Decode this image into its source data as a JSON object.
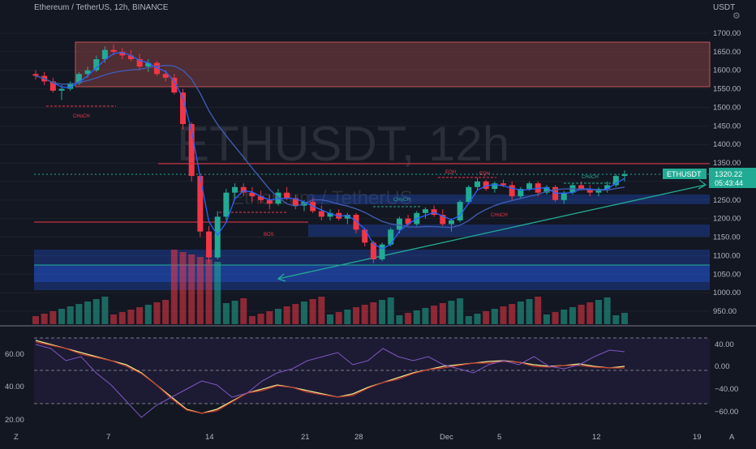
{
  "header": {
    "symbol_title": "Ethereum / TetherUS, 12h, BINANCE",
    "currency": "USDT",
    "watermark_symbol": "ETHUSDT, 12h",
    "watermark_name": "Ethereum / TetherUS",
    "settings_icon": "gear-icon"
  },
  "badges": {
    "symbol": "ETHUSDT",
    "price": "1320.22",
    "countdown": "05:43:44",
    "price_color": "#22ab94"
  },
  "chart_data": {
    "type": "candlestick",
    "price_ticks": [
      "1700.00",
      "1650.00",
      "1600.00",
      "1550.00",
      "1500.00",
      "1450.00",
      "1400.00",
      "1350.00",
      "1300.00",
      "1250.00",
      "1200.00",
      "1150.00",
      "1100.00",
      "1050.00",
      "1000.00",
      "950.00"
    ],
    "ylim": [
      925,
      1720
    ],
    "x_ticks": [
      "7",
      "14",
      "21",
      "28",
      "Dec",
      "5",
      "12",
      "19"
    ],
    "left_edge_labels": [
      "Z",
      "A"
    ],
    "oscillator": {
      "left_ticks": [
        "60.00",
        "40.00",
        "20.00"
      ],
      "right_ticks": [
        "40.00",
        "0.00",
        "−40.00",
        "−60.00"
      ]
    },
    "annotations": [
      "CHoCH",
      "BOS",
      "CHoCH",
      "EQH",
      "EQH",
      "CHoCH",
      "CHoCH"
    ],
    "candles": [
      [
        1590,
        1600,
        1575,
        1585
      ],
      [
        1585,
        1595,
        1560,
        1570
      ],
      [
        1570,
        1580,
        1540,
        1545
      ],
      [
        1545,
        1560,
        1520,
        1550
      ],
      [
        1550,
        1570,
        1545,
        1565
      ],
      [
        1565,
        1595,
        1560,
        1590
      ],
      [
        1590,
        1610,
        1580,
        1600
      ],
      [
        1600,
        1640,
        1595,
        1630
      ],
      [
        1630,
        1665,
        1620,
        1655
      ],
      [
        1655,
        1670,
        1640,
        1650
      ],
      [
        1650,
        1660,
        1630,
        1640
      ],
      [
        1640,
        1655,
        1625,
        1630
      ],
      [
        1630,
        1645,
        1600,
        1610
      ],
      [
        1610,
        1630,
        1595,
        1620
      ],
      [
        1620,
        1625,
        1585,
        1590
      ],
      [
        1590,
        1600,
        1570,
        1580
      ],
      [
        1580,
        1590,
        1535,
        1540
      ],
      [
        1540,
        1550,
        1440,
        1455
      ],
      [
        1455,
        1460,
        1300,
        1315
      ],
      [
        1315,
        1320,
        1150,
        1165
      ],
      [
        1165,
        1180,
        1080,
        1095
      ],
      [
        1095,
        1220,
        1090,
        1205
      ],
      [
        1205,
        1280,
        1195,
        1270
      ],
      [
        1270,
        1295,
        1250,
        1285
      ],
      [
        1285,
        1295,
        1260,
        1270
      ],
      [
        1270,
        1285,
        1245,
        1260
      ],
      [
        1260,
        1275,
        1240,
        1250
      ],
      [
        1250,
        1265,
        1225,
        1240
      ],
      [
        1240,
        1280,
        1235,
        1270
      ],
      [
        1270,
        1285,
        1250,
        1255
      ],
      [
        1255,
        1265,
        1225,
        1235
      ],
      [
        1235,
        1250,
        1220,
        1245
      ],
      [
        1245,
        1255,
        1215,
        1220
      ],
      [
        1220,
        1235,
        1195,
        1205
      ],
      [
        1205,
        1225,
        1195,
        1215
      ],
      [
        1215,
        1225,
        1195,
        1200
      ],
      [
        1200,
        1215,
        1185,
        1210
      ],
      [
        1210,
        1215,
        1160,
        1170
      ],
      [
        1170,
        1175,
        1125,
        1135
      ],
      [
        1135,
        1140,
        1080,
        1090
      ],
      [
        1090,
        1135,
        1085,
        1130
      ],
      [
        1130,
        1175,
        1125,
        1170
      ],
      [
        1170,
        1205,
        1160,
        1200
      ],
      [
        1200,
        1210,
        1180,
        1185
      ],
      [
        1185,
        1220,
        1180,
        1215
      ],
      [
        1215,
        1230,
        1200,
        1225
      ],
      [
        1225,
        1235,
        1205,
        1210
      ],
      [
        1210,
        1225,
        1180,
        1185
      ],
      [
        1185,
        1200,
        1165,
        1195
      ],
      [
        1195,
        1250,
        1190,
        1245
      ],
      [
        1245,
        1290,
        1240,
        1285
      ],
      [
        1285,
        1310,
        1275,
        1300
      ],
      [
        1300,
        1305,
        1275,
        1280
      ],
      [
        1280,
        1300,
        1270,
        1295
      ],
      [
        1295,
        1305,
        1285,
        1290
      ],
      [
        1290,
        1300,
        1250,
        1260
      ],
      [
        1260,
        1285,
        1255,
        1280
      ],
      [
        1280,
        1300,
        1275,
        1295
      ],
      [
        1295,
        1300,
        1260,
        1270
      ],
      [
        1270,
        1290,
        1265,
        1285
      ],
      [
        1285,
        1290,
        1245,
        1250
      ],
      [
        1250,
        1275,
        1240,
        1270
      ],
      [
        1270,
        1295,
        1265,
        1290
      ],
      [
        1290,
        1300,
        1275,
        1280
      ],
      [
        1280,
        1290,
        1260,
        1270
      ],
      [
        1270,
        1285,
        1260,
        1280
      ],
      [
        1280,
        1300,
        1270,
        1290
      ],
      [
        1290,
        1320,
        1285,
        1315
      ],
      [
        1315,
        1330,
        1300,
        1320
      ]
    ]
  }
}
